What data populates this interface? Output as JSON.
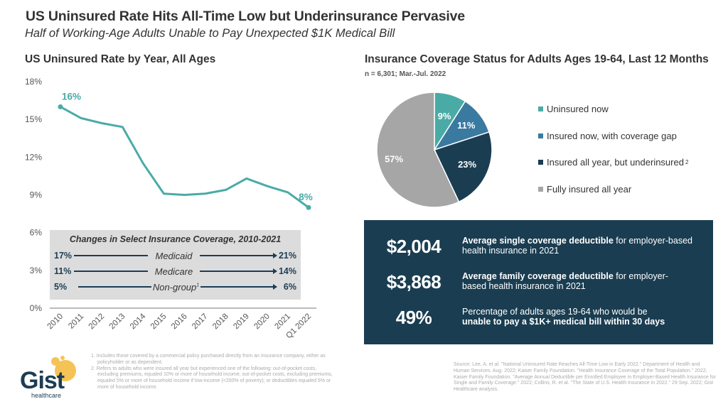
{
  "header": {
    "title": "US Uninsured Rate Hits All-Time Low but Underinsurance Pervasive",
    "subtitle": "Half of Working-Age Adults Unable to Pay Unexpected $1K Medical Bill"
  },
  "chart_data": [
    {
      "type": "line",
      "title": "US Uninsured Rate by Year, All Ages",
      "xlabel": "",
      "ylabel": "",
      "categories": [
        "2010",
        "2011",
        "2012",
        "2013",
        "2014",
        "2015",
        "2016",
        "2017",
        "2018",
        "2019",
        "2020",
        "2021",
        "Q1 2022"
      ],
      "series": [
        {
          "name": "Uninsured rate",
          "values": [
            16.0,
            15.1,
            14.7,
            14.4,
            11.5,
            9.1,
            9.0,
            9.1,
            9.4,
            10.3,
            9.7,
            9.2,
            8.0
          ]
        }
      ],
      "ylim": [
        0,
        18
      ],
      "yticks": [
        "0%",
        "3%",
        "6%",
        "9%",
        "12%",
        "15%",
        "18%"
      ],
      "point_labels": [
        {
          "index": 0,
          "text": "16%"
        },
        {
          "index": 12,
          "text": "8%"
        }
      ],
      "grid": false,
      "color": "#4aaba6"
    },
    {
      "type": "pie",
      "title": "Insurance Coverage Status for Adults Ages 19-64, Last 12 Months",
      "subtitle": "n = 6,301;  Mar.-Jul. 2022",
      "slices": [
        {
          "label": "Uninsured now",
          "value": 9,
          "display": "9%",
          "color": "#4aaba6"
        },
        {
          "label": "Insured now, with coverage gap",
          "value": 11,
          "display": "11%",
          "color": "#3a7aa0"
        },
        {
          "label": "Insured all year, but underinsured",
          "footnote": "2",
          "value": 23,
          "display": "23%",
          "color": "#1a3d51"
        },
        {
          "label": "Fully insured all year",
          "value": 57,
          "display": "57%",
          "color": "#a6a6a6"
        }
      ],
      "legend": "right"
    }
  ],
  "changes_box": {
    "title": "Changes in Select Insurance Coverage, 2010-2021",
    "rows": [
      {
        "label": "Medicaid",
        "start": "17%",
        "end": "21%",
        "sup": ""
      },
      {
        "label": "Medicare",
        "start": "11%",
        "end": "14%",
        "sup": ""
      },
      {
        "label": "Non-group",
        "start": "5%",
        "end": "6%",
        "sup": "1"
      }
    ]
  },
  "stats": [
    {
      "value": "$2,004",
      "bold": "Average single coverage deductible",
      "rest": " for employer-based health insurance in 2021"
    },
    {
      "value": "$3,868",
      "bold": "Average family coverage deductible",
      "rest": " for employer-based health insurance in 2021"
    },
    {
      "value": "49%",
      "plain": "Percentage of adults ages 19-64 who would be",
      "bold2": "unable to pay a $1K+ medical bill within 30 days"
    }
  ],
  "logo": {
    "name": "Gist",
    "sub": "healthcare"
  },
  "footnotes": [
    "1. Includes those covered by a commercial policy purchased directly from an insurance company, either as policyholder or as dependent.",
    "2. Refers to adults who were insured all year but experienced one of the following: out-of-pocket costs, excluding premiums, equaled 10% or more of household income; out-of-pocket costs, excluding premiums, equaled 5% or more of household income if low-income (<200% of poverty); or deductibles equaled 5% or more of household income."
  ],
  "source": "Source: Lee, A. et al. \"National Uninsured Rate Reaches All-Time Low in Early 2022.\" Department of Health and Human Services. Aug. 2022; Kaiser Family Foundation. \"Health Insurance Coverage of the Total Population.\" 2022; Kaiser Family Foundation. \"Average Annual Deductible per Enrolled Employee in Employer-Based Health Insurance for Single and Family Coverage.\" 2022; Collins, R. et al. \"The State of U.S. Health Insurance in 2022.\" 29 Sep. 2022; Gist Healthcare analysis."
}
